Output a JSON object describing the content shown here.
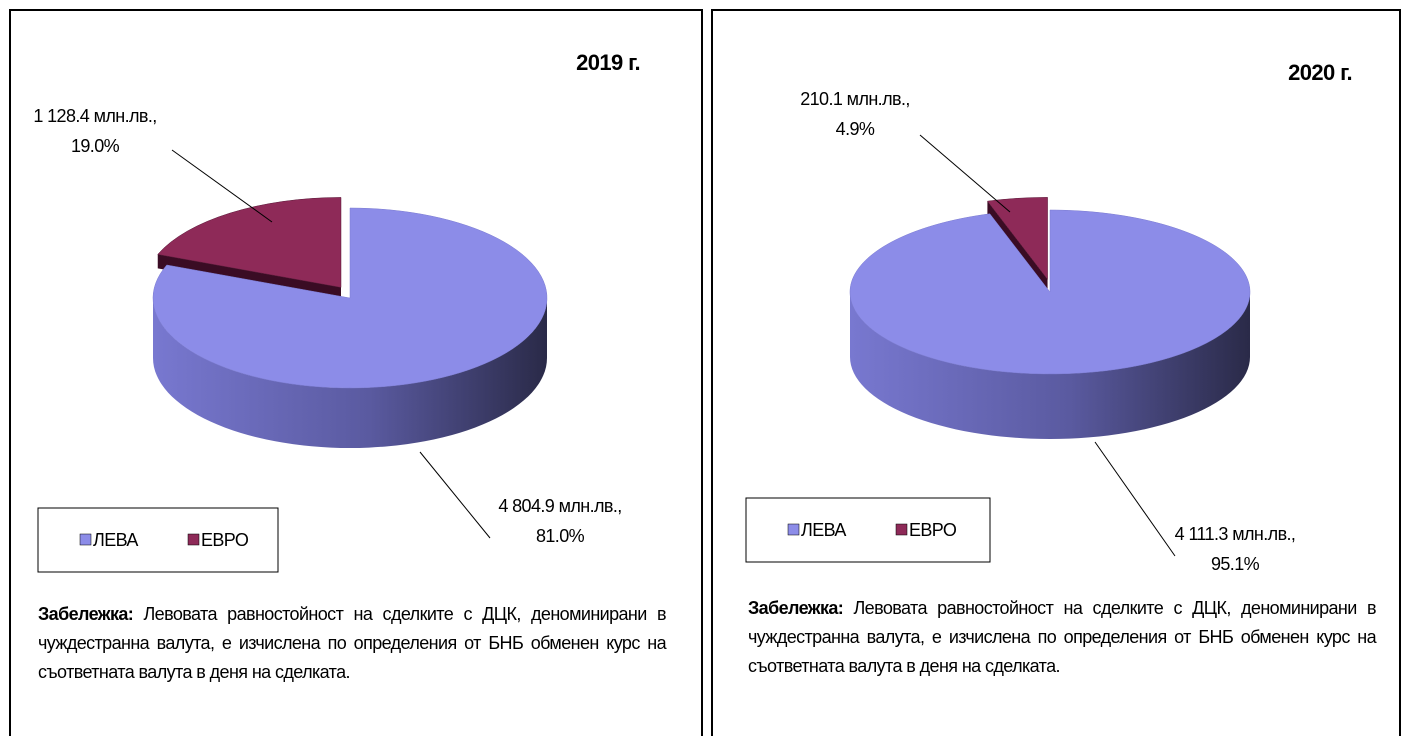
{
  "chart_data": [
    {
      "type": "pie",
      "title": "2019 г.",
      "categories": [
        "ЛЕВА",
        "ЕВРО"
      ],
      "colors": [
        "#8c8ce8",
        "#8e2a58"
      ],
      "values": [
        4804.9,
        1128.4
      ],
      "value_labels": [
        "4 804.9 млн.лв.,",
        "1 128.4 млн.лв.,"
      ],
      "percents": [
        81.0,
        19.0
      ],
      "percent_labels": [
        "81.0%",
        "19.0%"
      ],
      "note_label": "Забележка:",
      "note": "Левовата равностойност на сделките с ДЦК, деноминирани в чуждестранна валута, е изчислена по определения от БНБ обменен курс на съответната валута в деня на сделката."
    },
    {
      "type": "pie",
      "title": "2020 г.",
      "categories": [
        "ЛЕВА",
        "ЕВРО"
      ],
      "colors": [
        "#8c8ce8",
        "#8e2a58"
      ],
      "values": [
        4111.3,
        210.1
      ],
      "value_labels": [
        "4 111.3 млн.лв.,",
        "210.1 млн.лв.,"
      ],
      "percents": [
        95.1,
        4.9
      ],
      "percent_labels": [
        "95.1%",
        "4.9%"
      ],
      "note_label": "Забележка:",
      "note": "Левовата равностойност на сделките с ДЦК, деноминирани в чуждестранна валута, е изчислена по определения от БНБ обменен курс на съответната валута в деня на сделката."
    }
  ]
}
